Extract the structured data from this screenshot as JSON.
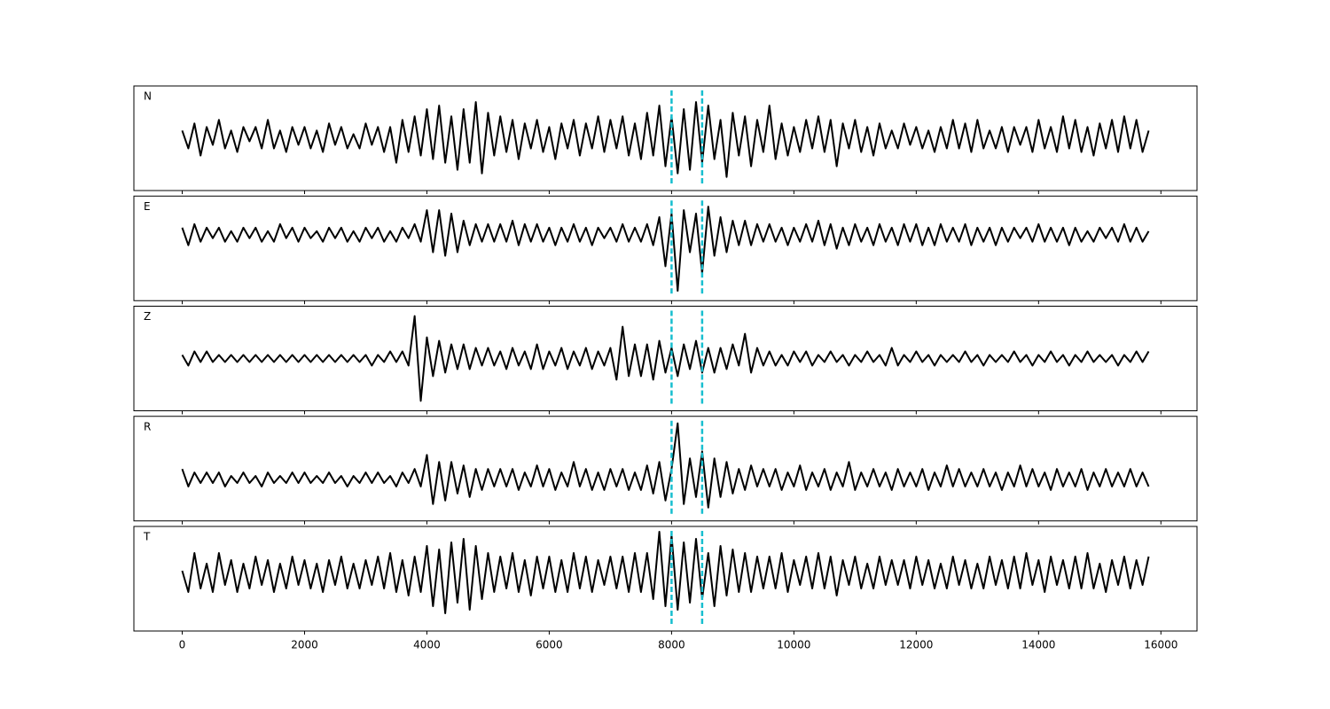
{
  "chart_data": {
    "type": "line",
    "x": [
      0,
      100,
      200,
      300,
      400,
      500,
      600,
      700,
      800,
      900,
      1000,
      1100,
      1200,
      1300,
      1400,
      1500,
      1600,
      1700,
      1800,
      1900,
      2000,
      2100,
      2200,
      2300,
      2400,
      2500,
      2600,
      2700,
      2800,
      2900,
      3000,
      3100,
      3200,
      3300,
      3400,
      3500,
      3600,
      3700,
      3800,
      3900,
      4000,
      4100,
      4200,
      4300,
      4400,
      4500,
      4600,
      4700,
      4800,
      4900,
      5000,
      5100,
      5200,
      5300,
      5400,
      5500,
      5600,
      5700,
      5800,
      5900,
      6000,
      6100,
      6200,
      6300,
      6400,
      6500,
      6600,
      6700,
      6800,
      6900,
      7000,
      7100,
      7200,
      7300,
      7400,
      7500,
      7600,
      7700,
      7800,
      7900,
      8000,
      8100,
      8200,
      8300,
      8400,
      8500,
      8600,
      8700,
      8800,
      8900,
      9000,
      9100,
      9200,
      9300,
      9400,
      9500,
      9600,
      9700,
      9800,
      9900,
      10000,
      10100,
      10200,
      10300,
      10400,
      10500,
      10600,
      10700,
      10800,
      10900,
      11000,
      11100,
      11200,
      11300,
      11400,
      11500,
      11600,
      11700,
      11800,
      11900,
      12000,
      12100,
      12200,
      12300,
      12400,
      12500,
      12600,
      12700,
      12800,
      12900,
      13000,
      13100,
      13200,
      13300,
      13400,
      13500,
      13600,
      13700,
      13800,
      13900,
      14000,
      14100,
      14200,
      14300,
      14400,
      14500,
      14600,
      14700,
      14800,
      14900,
      15000,
      15100,
      15200,
      15300,
      15400,
      15500,
      15600,
      15700,
      15800
    ],
    "xlim": [
      -790,
      16590
    ],
    "xticks": [
      0,
      2000,
      4000,
      6000,
      8000,
      10000,
      12000,
      14000,
      16000
    ],
    "vlines": [
      8000,
      8500
    ],
    "vline_color": "#17becf",
    "series": [
      {
        "name": "N",
        "color": "#000000",
        "ylim": [
          -1.48,
          1.45
        ],
        "values": [
          0.2,
          -0.3,
          0.4,
          -0.5,
          0.3,
          -0.2,
          0.5,
          -0.3,
          0.2,
          -0.4,
          0.3,
          -0.1,
          0.3,
          -0.3,
          0.5,
          -0.3,
          0.2,
          -0.4,
          0.3,
          -0.2,
          0.3,
          -0.3,
          0.2,
          -0.4,
          0.4,
          -0.2,
          0.3,
          -0.3,
          0.1,
          -0.3,
          0.4,
          -0.2,
          0.3,
          -0.4,
          0.3,
          -0.7,
          0.5,
          -0.4,
          0.6,
          -0.5,
          0.8,
          -0.6,
          0.9,
          -0.7,
          0.6,
          -0.9,
          0.8,
          -0.7,
          1.0,
          -1.0,
          0.7,
          -0.5,
          0.6,
          -0.4,
          0.5,
          -0.6,
          0.4,
          -0.3,
          0.5,
          -0.4,
          0.3,
          -0.6,
          0.4,
          -0.3,
          0.5,
          -0.5,
          0.4,
          -0.3,
          0.6,
          -0.4,
          0.5,
          -0.3,
          0.6,
          -0.5,
          0.4,
          -0.6,
          0.7,
          -0.5,
          0.9,
          -0.8,
          0.6,
          -1.0,
          0.8,
          -0.9,
          1.0,
          -0.7,
          0.9,
          -0.6,
          0.5,
          -1.1,
          0.7,
          -0.5,
          0.6,
          -0.8,
          0.5,
          -0.4,
          0.9,
          -0.6,
          0.4,
          -0.5,
          0.3,
          -0.4,
          0.5,
          -0.3,
          0.6,
          -0.4,
          0.5,
          -0.8,
          0.4,
          -0.3,
          0.5,
          -0.4,
          0.3,
          -0.5,
          0.4,
          -0.3,
          0.2,
          -0.3,
          0.4,
          -0.2,
          0.3,
          -0.3,
          0.2,
          -0.4,
          0.3,
          -0.3,
          0.5,
          -0.3,
          0.4,
          -0.4,
          0.5,
          -0.3,
          0.2,
          -0.3,
          0.3,
          -0.4,
          0.3,
          -0.2,
          0.3,
          -0.4,
          0.5,
          -0.3,
          0.3,
          -0.4,
          0.6,
          -0.3,
          0.5,
          -0.4,
          0.3,
          -0.5,
          0.4,
          -0.3,
          0.5,
          -0.4,
          0.6,
          -0.3,
          0.5,
          -0.4,
          0.2
        ]
      },
      {
        "name": "E",
        "color": "#000000",
        "ylim": [
          -1.88,
          1.1
        ],
        "values": [
          0.2,
          -0.3,
          0.3,
          -0.2,
          0.2,
          -0.1,
          0.2,
          -0.2,
          0.1,
          -0.2,
          0.2,
          -0.1,
          0.2,
          -0.2,
          0.1,
          -0.2,
          0.3,
          -0.1,
          0.2,
          -0.2,
          0.2,
          -0.1,
          0.1,
          -0.2,
          0.2,
          -0.1,
          0.2,
          -0.2,
          0.1,
          -0.2,
          0.2,
          -0.1,
          0.2,
          -0.2,
          0.1,
          -0.2,
          0.2,
          -0.1,
          0.3,
          -0.2,
          0.7,
          -0.5,
          0.7,
          -0.6,
          0.6,
          -0.5,
          0.4,
          -0.3,
          0.3,
          -0.2,
          0.3,
          -0.2,
          0.3,
          -0.2,
          0.4,
          -0.3,
          0.3,
          -0.2,
          0.3,
          -0.2,
          0.2,
          -0.3,
          0.2,
          -0.2,
          0.3,
          -0.2,
          0.2,
          -0.3,
          0.2,
          -0.1,
          0.2,
          -0.2,
          0.3,
          -0.2,
          0.2,
          -0.2,
          0.3,
          -0.3,
          0.5,
          -0.9,
          0.6,
          -1.6,
          0.7,
          -0.5,
          0.6,
          -1.1,
          0.8,
          -0.6,
          0.5,
          -0.5,
          0.4,
          -0.3,
          0.4,
          -0.3,
          0.3,
          -0.2,
          0.3,
          -0.2,
          0.2,
          -0.3,
          0.2,
          -0.2,
          0.3,
          -0.2,
          0.4,
          -0.3,
          0.3,
          -0.4,
          0.2,
          -0.3,
          0.3,
          -0.2,
          0.2,
          -0.3,
          0.3,
          -0.2,
          0.2,
          -0.3,
          0.3,
          -0.2,
          0.3,
          -0.3,
          0.2,
          -0.3,
          0.3,
          -0.2,
          0.2,
          -0.2,
          0.3,
          -0.3,
          0.2,
          -0.2,
          0.2,
          -0.3,
          0.2,
          -0.2,
          0.2,
          -0.1,
          0.2,
          -0.2,
          0.3,
          -0.2,
          0.2,
          -0.2,
          0.2,
          -0.3,
          0.2,
          -0.2,
          0.1,
          -0.2,
          0.2,
          -0.1,
          0.2,
          -0.2,
          0.3,
          -0.2,
          0.2,
          -0.2,
          0.1
        ]
      },
      {
        "name": "Z",
        "color": "#000000",
        "ylim": [
          -1.48,
          1.48
        ],
        "values": [
          0.1,
          -0.2,
          0.2,
          -0.1,
          0.2,
          -0.1,
          0.1,
          -0.1,
          0.1,
          -0.1,
          0.1,
          -0.1,
          0.1,
          -0.1,
          0.1,
          -0.1,
          0.1,
          -0.1,
          0.1,
          -0.1,
          0.1,
          -0.1,
          0.1,
          -0.1,
          0.1,
          -0.1,
          0.1,
          -0.1,
          0.1,
          -0.1,
          0.1,
          -0.2,
          0.1,
          -0.1,
          0.2,
          -0.1,
          0.2,
          -0.2,
          1.2,
          -1.2,
          0.6,
          -0.5,
          0.5,
          -0.4,
          0.4,
          -0.3,
          0.4,
          -0.3,
          0.3,
          -0.2,
          0.3,
          -0.2,
          0.2,
          -0.3,
          0.3,
          -0.2,
          0.2,
          -0.3,
          0.4,
          -0.3,
          0.2,
          -0.2,
          0.3,
          -0.3,
          0.2,
          -0.2,
          0.3,
          -0.3,
          0.2,
          -0.2,
          0.3,
          -0.6,
          0.9,
          -0.5,
          0.4,
          -0.5,
          0.4,
          -0.6,
          0.5,
          -0.4,
          0.3,
          -0.5,
          0.4,
          -0.3,
          0.5,
          -0.4,
          0.3,
          -0.4,
          0.3,
          -0.3,
          0.4,
          -0.2,
          0.7,
          -0.4,
          0.3,
          -0.2,
          0.2,
          -0.2,
          0.1,
          -0.2,
          0.2,
          -0.1,
          0.2,
          -0.2,
          0.1,
          -0.1,
          0.2,
          -0.1,
          0.1,
          -0.2,
          0.1,
          -0.1,
          0.2,
          -0.1,
          0.1,
          -0.2,
          0.3,
          -0.2,
          0.1,
          -0.1,
          0.2,
          -0.1,
          0.1,
          -0.2,
          0.1,
          -0.1,
          0.1,
          -0.1,
          0.2,
          -0.1,
          0.1,
          -0.2,
          0.1,
          -0.1,
          0.1,
          -0.1,
          0.2,
          -0.1,
          0.1,
          -0.2,
          0.1,
          -0.1,
          0.2,
          -0.1,
          0.1,
          -0.2,
          0.1,
          -0.1,
          0.2,
          -0.1,
          0.1,
          -0.1,
          0.1,
          -0.2,
          0.1,
          -0.1,
          0.2,
          -0.1,
          0.2
        ]
      },
      {
        "name": "R",
        "color": "#000000",
        "ylim": [
          -1.18,
          1.8
        ],
        "values": [
          0.3,
          -0.2,
          0.2,
          -0.1,
          0.2,
          -0.1,
          0.2,
          -0.2,
          0.1,
          -0.1,
          0.2,
          -0.1,
          0.1,
          -0.2,
          0.2,
          -0.1,
          0.1,
          -0.1,
          0.2,
          -0.1,
          0.2,
          -0.1,
          0.1,
          -0.1,
          0.2,
          -0.1,
          0.1,
          -0.2,
          0.1,
          -0.1,
          0.2,
          -0.1,
          0.2,
          -0.1,
          0.1,
          -0.2,
          0.2,
          -0.1,
          0.3,
          -0.2,
          0.7,
          -0.7,
          0.5,
          -0.6,
          0.5,
          -0.4,
          0.4,
          -0.5,
          0.3,
          -0.3,
          0.3,
          -0.2,
          0.3,
          -0.2,
          0.3,
          -0.3,
          0.2,
          -0.2,
          0.4,
          -0.2,
          0.3,
          -0.3,
          0.2,
          -0.2,
          0.5,
          -0.2,
          0.3,
          -0.3,
          0.2,
          -0.3,
          0.3,
          -0.2,
          0.3,
          -0.3,
          0.2,
          -0.3,
          0.4,
          -0.4,
          0.5,
          -0.6,
          0.3,
          1.6,
          -0.7,
          0.6,
          -0.5,
          0.8,
          -0.8,
          0.6,
          -0.5,
          0.5,
          -0.4,
          0.3,
          -0.3,
          0.4,
          -0.2,
          0.3,
          -0.2,
          0.3,
          -0.3,
          0.2,
          -0.2,
          0.4,
          -0.3,
          0.2,
          -0.2,
          0.3,
          -0.3,
          0.2,
          -0.2,
          0.5,
          -0.3,
          0.2,
          -0.2,
          0.3,
          -0.2,
          0.2,
          -0.3,
          0.3,
          -0.2,
          0.2,
          -0.2,
          0.3,
          -0.3,
          0.2,
          -0.2,
          0.4,
          -0.2,
          0.3,
          -0.2,
          0.2,
          -0.2,
          0.3,
          -0.2,
          0.2,
          -0.3,
          0.2,
          -0.2,
          0.4,
          -0.2,
          0.3,
          -0.2,
          0.2,
          -0.3,
          0.3,
          -0.2,
          0.2,
          -0.2,
          0.3,
          -0.3,
          0.2,
          -0.2,
          0.3,
          -0.2,
          0.2,
          -0.2,
          0.3,
          -0.2,
          0.2,
          -0.2
        ]
      },
      {
        "name": "T",
        "color": "#000000",
        "ylim": [
          -1.6,
          1.35
        ],
        "values": [
          0.1,
          -0.5,
          0.6,
          -0.4,
          0.3,
          -0.5,
          0.6,
          -0.3,
          0.4,
          -0.5,
          0.3,
          -0.4,
          0.5,
          -0.3,
          0.4,
          -0.5,
          0.3,
          -0.4,
          0.5,
          -0.3,
          0.4,
          -0.4,
          0.3,
          -0.5,
          0.4,
          -0.3,
          0.5,
          -0.4,
          0.3,
          -0.4,
          0.4,
          -0.3,
          0.5,
          -0.4,
          0.6,
          -0.5,
          0.4,
          -0.6,
          0.5,
          -0.5,
          0.8,
          -0.9,
          0.7,
          -1.1,
          0.9,
          -0.8,
          1.0,
          -1.0,
          0.8,
          -0.7,
          0.6,
          -0.5,
          0.5,
          -0.4,
          0.6,
          -0.5,
          0.4,
          -0.6,
          0.5,
          -0.4,
          0.5,
          -0.5,
          0.4,
          -0.5,
          0.6,
          -0.4,
          0.5,
          -0.5,
          0.4,
          -0.3,
          0.5,
          -0.4,
          0.5,
          -0.5,
          0.6,
          -0.5,
          0.6,
          -0.7,
          1.2,
          -0.9,
          1.1,
          -1.0,
          0.9,
          -0.8,
          1.0,
          -0.7,
          0.6,
          -0.9,
          0.8,
          -0.6,
          0.7,
          -0.5,
          0.6,
          -0.5,
          0.5,
          -0.4,
          0.5,
          -0.4,
          0.6,
          -0.5,
          0.4,
          -0.3,
          0.5,
          -0.4,
          0.6,
          -0.4,
          0.5,
          -0.6,
          0.4,
          -0.3,
          0.5,
          -0.4,
          0.3,
          -0.4,
          0.5,
          -0.3,
          0.4,
          -0.3,
          0.4,
          -0.4,
          0.5,
          -0.3,
          0.4,
          -0.4,
          0.3,
          -0.4,
          0.5,
          -0.3,
          0.4,
          -0.4,
          0.3,
          -0.4,
          0.5,
          -0.3,
          0.4,
          -0.4,
          0.5,
          -0.4,
          0.6,
          -0.3,
          0.4,
          -0.5,
          0.5,
          -0.3,
          0.4,
          -0.4,
          0.5,
          -0.4,
          0.6,
          -0.4,
          0.3,
          -0.5,
          0.4,
          -0.3,
          0.5,
          -0.4,
          0.4,
          -0.3,
          0.5
        ]
      }
    ]
  }
}
